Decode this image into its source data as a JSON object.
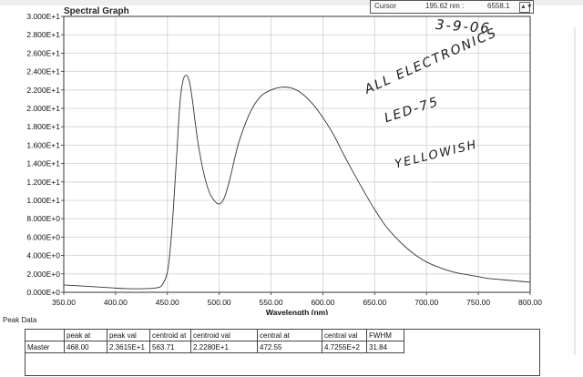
{
  "window": {
    "title": "Spectral Graph",
    "cursor_label": "Cursor",
    "cursor_x": "195.62 nm :",
    "cursor_y": "6558.1",
    "cursor_arrows": "▲▼"
  },
  "chart_data": {
    "type": "line",
    "title": "Spectral Graph",
    "xlabel": "Wavelength (nm)",
    "ylabel": "",
    "xlim": [
      350,
      800
    ],
    "ylim": [
      0,
      30
    ],
    "x_ticks": [
      350,
      400,
      450,
      500,
      550,
      600,
      650,
      700,
      750,
      800
    ],
    "x_tick_labels": [
      "350.00",
      "400.00",
      "450.00",
      "500.00",
      "550.00",
      "600.00",
      "650.00",
      "700.00",
      "750.00",
      "800.00"
    ],
    "y_ticks": [
      0,
      2,
      4,
      6,
      8,
      10,
      12,
      14,
      16,
      18,
      20,
      22,
      24,
      26,
      28,
      30
    ],
    "y_tick_labels": [
      "0.000E+0",
      "2.000E+0",
      "4.000E+0",
      "6.000E+0",
      "8.000E+0",
      "1.000E+1",
      "1.200E+1",
      "1.400E+1",
      "1.600E+1",
      "1.800E+1",
      "2.000E+1",
      "2.200E+1",
      "2.400E+1",
      "2.600E+1",
      "2.800E+1",
      "3.000E+1"
    ],
    "grid": true,
    "series": [
      {
        "color": "#333333",
        "x": [
          350,
          380,
          410,
          430,
          440,
          445,
          450,
          453,
          456,
          459,
          462,
          465,
          468,
          471,
          474,
          477,
          480,
          485,
          490,
          495,
          500,
          505,
          510,
          515,
          520,
          530,
          540,
          550,
          560,
          570,
          580,
          590,
          600,
          610,
          620,
          630,
          640,
          650,
          660,
          670,
          680,
          690,
          700,
          710,
          720,
          730,
          740,
          750,
          760,
          770,
          780,
          790,
          800
        ],
        "y": [
          0.8,
          0.6,
          0.4,
          0.4,
          0.5,
          0.8,
          2.2,
          5.0,
          9.5,
          15.0,
          20.5,
          23.0,
          23.6,
          23.0,
          21.0,
          18.3,
          15.9,
          13.0,
          11.0,
          10.0,
          9.6,
          10.3,
          12.2,
          14.6,
          16.7,
          19.6,
          21.3,
          22.0,
          22.3,
          22.2,
          21.6,
          20.5,
          19.0,
          17.2,
          15.0,
          12.9,
          10.9,
          9.0,
          7.3,
          6.0,
          4.9,
          4.0,
          3.3,
          2.8,
          2.4,
          2.1,
          1.9,
          1.7,
          1.5,
          1.4,
          1.3,
          1.2,
          1.1
        ]
      }
    ]
  },
  "peak_data": {
    "title": "Peak Data",
    "headers": [
      "",
      "peak at",
      "peak val",
      "centroid at",
      "centroid val",
      "central at",
      "central val",
      "FWHM"
    ],
    "rows": [
      [
        "Master",
        "468.00",
        "2.3615E+1",
        "563.71",
        "2.2280E+1",
        "472.55",
        "4.7255E+2",
        "31.84"
      ]
    ]
  },
  "annotations": {
    "date": "3-9-06",
    "line1": "ALL ELECTRONICS",
    "line2": "LED-75",
    "line3": "YELLOWISH"
  }
}
